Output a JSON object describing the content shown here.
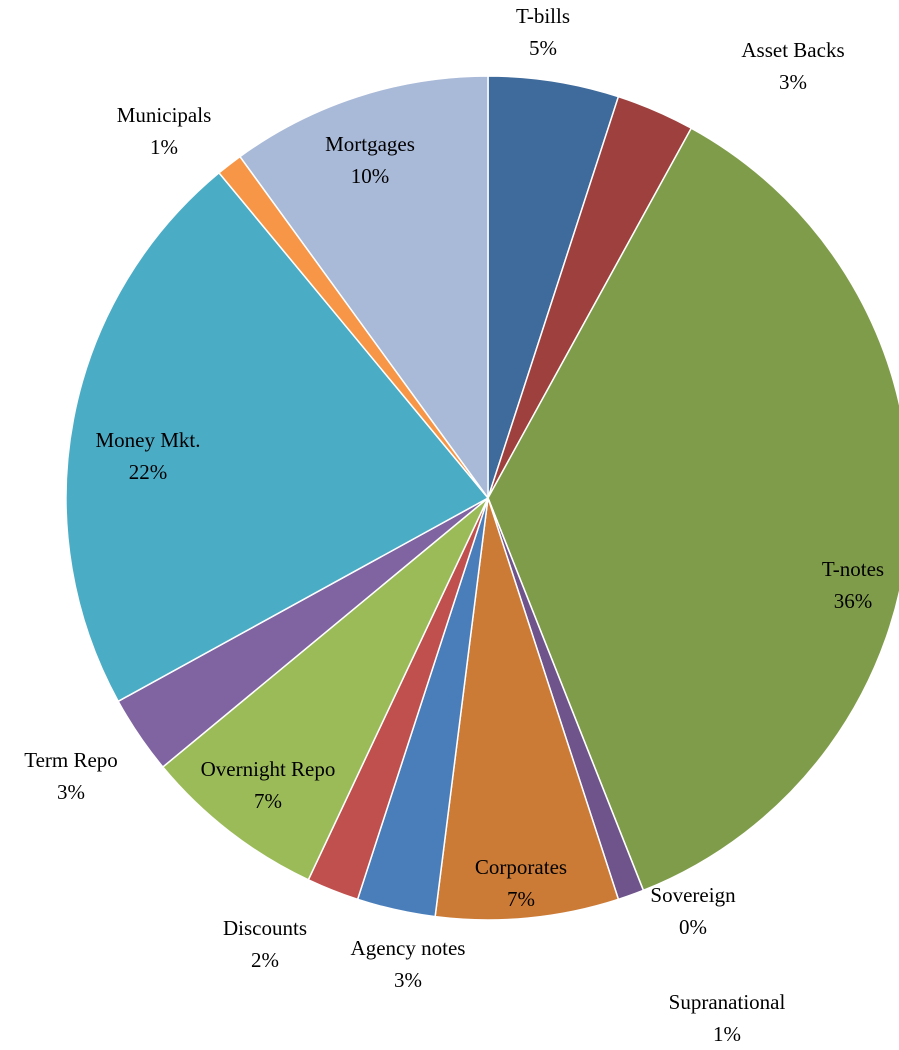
{
  "chart_data": {
    "type": "pie",
    "categories": [
      "T-bills",
      "Asset Backs",
      "T-notes",
      "Sovereign",
      "Supranational",
      "Corporates",
      "Agency notes",
      "Discounts",
      "Overnight Repo",
      "Term Repo",
      "Money Mkt.",
      "Municipals",
      "Mortgages"
    ],
    "values": [
      5,
      3,
      36,
      0,
      1,
      7,
      3,
      2,
      7,
      3,
      22,
      1,
      10
    ],
    "value_labels": [
      "5%",
      "3%",
      "36%",
      "0%",
      "1%",
      "7%",
      "3%",
      "2%",
      "7%",
      "3%",
      "22%",
      "1%",
      "10%"
    ],
    "colors": [
      "#3f6a9c",
      "#9e413e",
      "#7f9c4a",
      "#6a5090",
      "#6f548c",
      "#cc7b37",
      "#4a7ebb",
      "#c0504d",
      "#9bbb59",
      "#8064a2",
      "#4bacc6",
      "#f79646",
      "#a9b9d8"
    ]
  }
}
